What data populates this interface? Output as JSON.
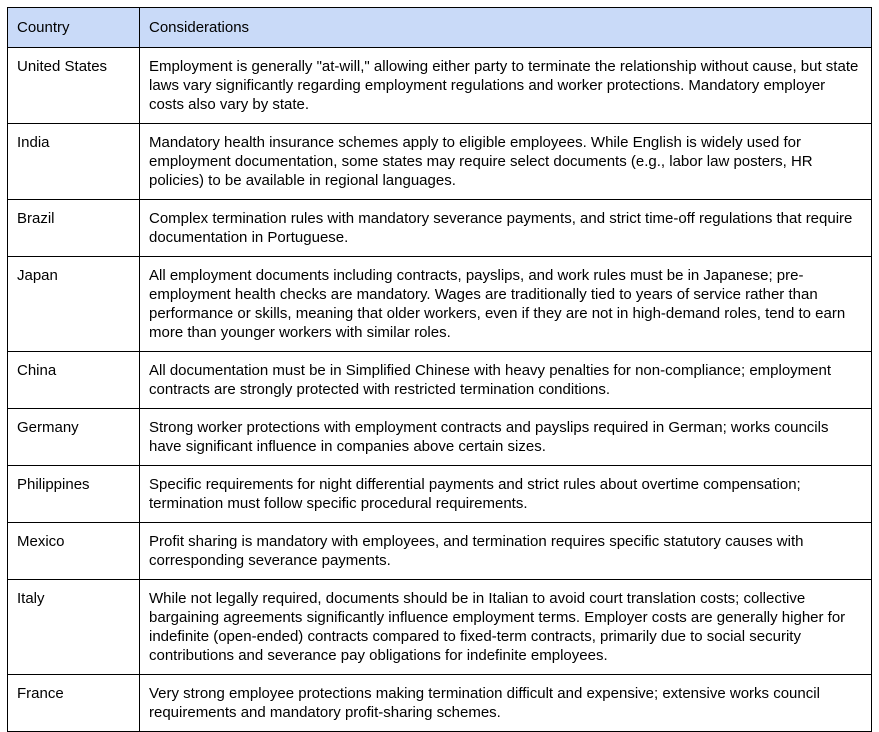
{
  "table": {
    "header": [
      "Country",
      "Considerations"
    ],
    "rows": [
      [
        "United States",
        "Employment is generally \"at-will,\" allowing either party to terminate the relationship without cause, but state laws vary significantly regarding employment regulations and worker protections. Mandatory employer costs also vary by state."
      ],
      [
        "India",
        "Mandatory health insurance schemes apply to eligible employees. While English is widely used for employment documentation, some states may require select documents (e.g., labor law posters, HR policies) to be available in regional languages."
      ],
      [
        "Brazil",
        "Complex termination rules with mandatory severance payments, and strict time-off regulations that require documentation in Portuguese."
      ],
      [
        "Japan",
        "All employment documents including contracts, payslips, and work rules must be in Japanese; pre-employment health checks are mandatory. Wages are traditionally tied to years of service rather than performance or skills, meaning that older workers, even if they are not in high-demand roles, tend to earn more than younger workers with similar roles."
      ],
      [
        "China",
        "All documentation must be in Simplified Chinese with heavy penalties for non-compliance; employment contracts are strongly protected with restricted termination conditions."
      ],
      [
        "Germany",
        "Strong worker protections with employment contracts and payslips required in German; works councils have significant influence in companies above certain sizes."
      ],
      [
        "Philippines",
        "Specific requirements for night differential payments and strict rules about overtime compensation; termination must follow specific procedural requirements."
      ],
      [
        "Mexico",
        "Profit sharing is mandatory with employees, and termination requires specific statutory causes with corresponding severance payments."
      ],
      [
        "Italy",
        "While not legally required, documents should be in Italian to avoid court translation costs; collective bargaining agreements significantly influence employment terms. Employer costs are generally higher for indefinite (open-ended) contracts compared to fixed-term contracts, primarily due to social security contributions and severance pay obligations for indefinite employees."
      ],
      [
        "France",
        "Very strong employee protections making termination difficult and expensive; extensive works council requirements and mandatory profit-sharing schemes."
      ]
    ]
  }
}
